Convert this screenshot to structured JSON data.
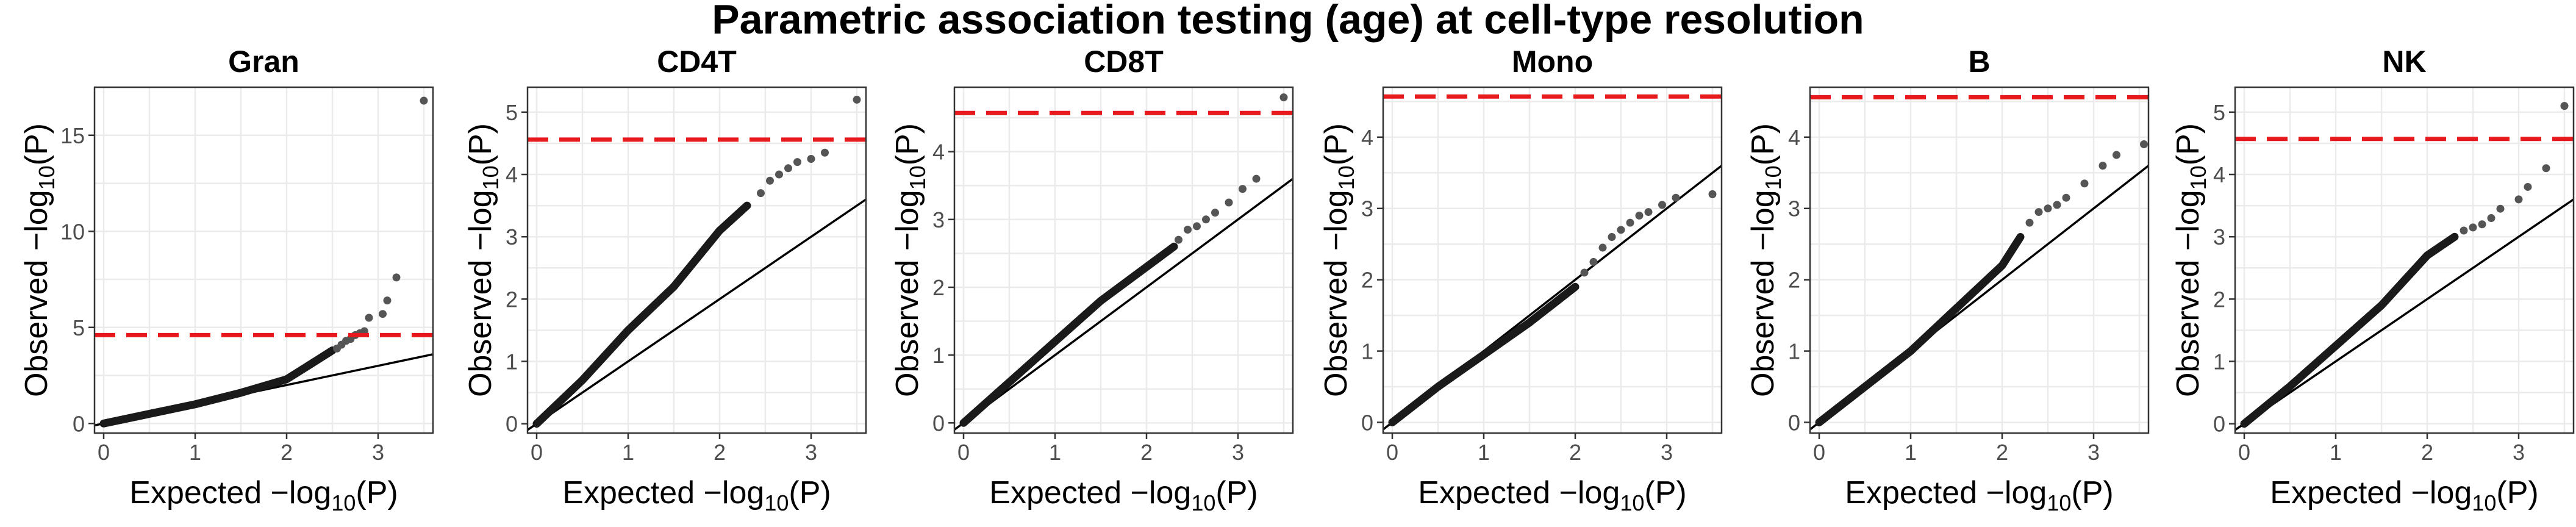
{
  "figure_title": "Parametric association testing (age) at cell-type resolution",
  "colors": {
    "points": "#1a1a1a",
    "outlier_points": "#555555",
    "threshold_line": "#e8191c",
    "identity_line": "#000000",
    "grid": "#ebebeb",
    "panel_border": "#333333"
  },
  "axis_labels": {
    "x": {
      "prefix": "Expected −log",
      "sub": "10",
      "suffix": "(P)"
    },
    "y": {
      "prefix": "Observed −log",
      "sub": "10",
      "suffix": "(P)"
    }
  },
  "chart_data": [
    {
      "type": "scatter",
      "title": "Gran",
      "xlim": [
        -0.1,
        3.6
      ],
      "ylim": [
        -0.5,
        17.5
      ],
      "x_ticks": [
        0,
        1,
        2,
        3
      ],
      "y_ticks": [
        0,
        5,
        10,
        15
      ],
      "threshold": 4.6,
      "curve": [
        [
          0,
          0
        ],
        [
          0.5,
          0.5
        ],
        [
          1.0,
          1.0
        ],
        [
          1.5,
          1.6
        ],
        [
          2.0,
          2.3
        ],
        [
          2.3,
          3.2
        ],
        [
          2.5,
          3.8
        ]
      ],
      "tail_points": [
        [
          2.55,
          3.9
        ],
        [
          2.6,
          4.1
        ],
        [
          2.65,
          4.3
        ],
        [
          2.7,
          4.4
        ],
        [
          2.75,
          4.6
        ],
        [
          2.8,
          4.7
        ],
        [
          2.85,
          4.8
        ],
        [
          2.9,
          5.5
        ],
        [
          3.05,
          5.7
        ],
        [
          3.1,
          6.4
        ],
        [
          3.2,
          7.6
        ],
        [
          3.5,
          16.8
        ]
      ],
      "grid": true
    },
    {
      "type": "scatter",
      "title": "CD4T",
      "xlim": [
        -0.1,
        3.6
      ],
      "ylim": [
        -0.15,
        5.4
      ],
      "x_ticks": [
        0,
        1,
        2,
        3
      ],
      "y_ticks": [
        0,
        1,
        2,
        3,
        4,
        5
      ],
      "threshold": 4.56,
      "curve": [
        [
          0,
          0
        ],
        [
          0.5,
          0.7
        ],
        [
          1.0,
          1.5
        ],
        [
          1.5,
          2.2
        ],
        [
          2.0,
          3.1
        ],
        [
          2.3,
          3.5
        ]
      ],
      "tail_points": [
        [
          2.45,
          3.7
        ],
        [
          2.55,
          3.9
        ],
        [
          2.65,
          4.0
        ],
        [
          2.75,
          4.1
        ],
        [
          2.85,
          4.2
        ],
        [
          3.0,
          4.25
        ],
        [
          3.15,
          4.35
        ],
        [
          3.5,
          5.2
        ]
      ],
      "grid": true
    },
    {
      "type": "scatter",
      "title": "CD8T",
      "xlim": [
        -0.1,
        3.6
      ],
      "ylim": [
        -0.15,
        4.95
      ],
      "x_ticks": [
        0,
        1,
        2,
        3
      ],
      "y_ticks": [
        0,
        1,
        2,
        3,
        4
      ],
      "threshold": 4.57,
      "curve": [
        [
          0,
          0
        ],
        [
          0.5,
          0.6
        ],
        [
          1.0,
          1.2
        ],
        [
          1.5,
          1.8
        ],
        [
          2.0,
          2.3
        ],
        [
          2.3,
          2.6
        ]
      ],
      "tail_points": [
        [
          2.35,
          2.7
        ],
        [
          2.45,
          2.85
        ],
        [
          2.55,
          2.9
        ],
        [
          2.65,
          3.0
        ],
        [
          2.75,
          3.1
        ],
        [
          2.9,
          3.25
        ],
        [
          3.05,
          3.45
        ],
        [
          3.2,
          3.6
        ],
        [
          3.5,
          4.8
        ]
      ],
      "grid": true
    },
    {
      "type": "scatter",
      "title": "Mono",
      "xlim": [
        -0.1,
        3.6
      ],
      "ylim": [
        -0.15,
        4.7
      ],
      "x_ticks": [
        0,
        1,
        2,
        3
      ],
      "y_ticks": [
        0,
        1,
        2,
        3,
        4
      ],
      "threshold": 4.57,
      "curve": [
        [
          0,
          0
        ],
        [
          0.5,
          0.5
        ],
        [
          1.0,
          0.95
        ],
        [
          1.5,
          1.4
        ],
        [
          2.0,
          1.9
        ]
      ],
      "tail_points": [
        [
          2.1,
          2.1
        ],
        [
          2.2,
          2.25
        ],
        [
          2.3,
          2.45
        ],
        [
          2.4,
          2.6
        ],
        [
          2.5,
          2.7
        ],
        [
          2.6,
          2.8
        ],
        [
          2.7,
          2.9
        ],
        [
          2.8,
          2.95
        ],
        [
          2.95,
          3.05
        ],
        [
          3.1,
          3.15
        ],
        [
          3.5,
          3.2
        ]
      ],
      "grid": true
    },
    {
      "type": "scatter",
      "title": "B",
      "xlim": [
        -0.1,
        3.6
      ],
      "ylim": [
        -0.15,
        4.7
      ],
      "x_ticks": [
        0,
        1,
        2,
        3
      ],
      "y_ticks": [
        0,
        1,
        2,
        3,
        4
      ],
      "threshold": 4.56,
      "curve": [
        [
          0,
          0
        ],
        [
          0.5,
          0.5
        ],
        [
          1.0,
          1.0
        ],
        [
          1.5,
          1.6
        ],
        [
          2.0,
          2.2
        ],
        [
          2.2,
          2.6
        ]
      ],
      "tail_points": [
        [
          2.3,
          2.8
        ],
        [
          2.4,
          2.95
        ],
        [
          2.5,
          3.0
        ],
        [
          2.6,
          3.05
        ],
        [
          2.7,
          3.15
        ],
        [
          2.9,
          3.35
        ],
        [
          3.1,
          3.6
        ],
        [
          3.25,
          3.75
        ],
        [
          3.55,
          3.9
        ]
      ],
      "grid": true
    },
    {
      "type": "scatter",
      "title": "NK",
      "xlim": [
        -0.1,
        3.6
      ],
      "ylim": [
        -0.15,
        5.4
      ],
      "x_ticks": [
        0,
        1,
        2,
        3
      ],
      "y_ticks": [
        0,
        1,
        2,
        3,
        4,
        5
      ],
      "threshold": 4.57,
      "curve": [
        [
          0,
          0
        ],
        [
          0.5,
          0.6
        ],
        [
          1.0,
          1.25
        ],
        [
          1.5,
          1.9
        ],
        [
          2.0,
          2.7
        ],
        [
          2.3,
          3.0
        ]
      ],
      "tail_points": [
        [
          2.4,
          3.1
        ],
        [
          2.5,
          3.15
        ],
        [
          2.6,
          3.2
        ],
        [
          2.7,
          3.3
        ],
        [
          2.8,
          3.45
        ],
        [
          3.0,
          3.6
        ],
        [
          3.1,
          3.8
        ],
        [
          3.3,
          4.1
        ],
        [
          3.5,
          5.1
        ]
      ],
      "grid": true
    }
  ]
}
